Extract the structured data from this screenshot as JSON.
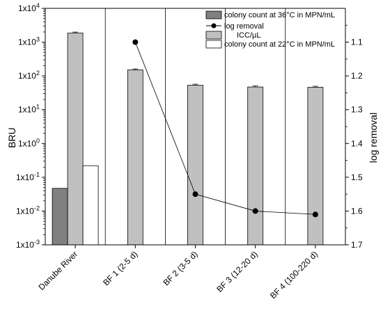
{
  "chart_data": {
    "type": "bar",
    "categories": [
      "Danube River",
      "BF 1 (2-5 d)",
      "BF 2 (3-5 d)",
      "BF 3 (12-20 d)",
      "BF 4 (100-220 d)"
    ],
    "series": [
      {
        "name": "colony count at 36°C in MPN/mL",
        "axis": "left",
        "kind": "bar",
        "color": "#808080",
        "values": [
          0.047,
          null,
          null,
          null,
          null
        ]
      },
      {
        "name": "ICC/µL",
        "axis": "left",
        "kind": "bar",
        "color": "#c0c0c0",
        "values": [
          1850,
          150,
          53,
          47,
          46
        ]
      },
      {
        "name": "colony count at 22°C in MPN/mL",
        "axis": "left",
        "kind": "bar",
        "color": "#ffffff",
        "values": [
          0.22,
          null,
          null,
          null,
          null
        ]
      },
      {
        "name": "log removal",
        "axis": "right",
        "kind": "line",
        "color": "#000000",
        "values": [
          null,
          1.1,
          1.55,
          1.6,
          1.61
        ]
      }
    ],
    "y_left": {
      "label": "BRU",
      "scale": "log",
      "range": [
        0.001,
        10000
      ],
      "tick_values": [
        0.001,
        0.01,
        0.1,
        1,
        10,
        100,
        1000,
        10000
      ],
      "tick_labels": [
        "1x10-3",
        "1x10-2",
        "1x10-1",
        "1x100",
        "1x101",
        "1x102",
        "1x103",
        "1x104"
      ]
    },
    "y_right": {
      "label": "log removal",
      "scale": "linear",
      "inverted": true,
      "range": [
        1.0,
        1.7
      ],
      "ticks": [
        1.1,
        1.2,
        1.3,
        1.4,
        1.5,
        1.6,
        1.7
      ]
    },
    "legend_order": [
      "colony count at 36°C in MPN/mL",
      "log removal",
      "ICC/µL",
      "colony count at 22°C in MPN/mL"
    ],
    "legend_position": "top-right",
    "category_dividers": true,
    "error_bars": "ICC/µL"
  }
}
